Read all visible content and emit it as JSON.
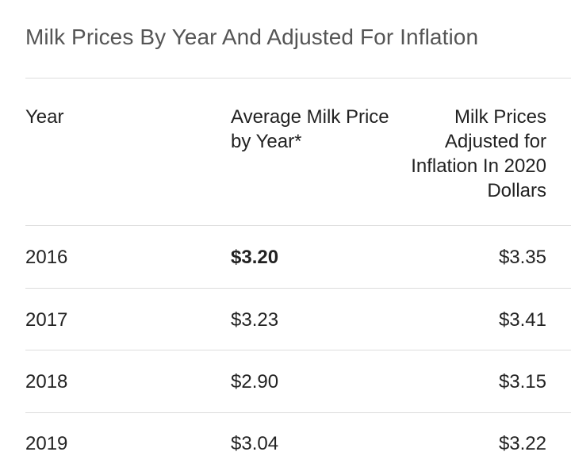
{
  "title": "Milk Prices By Year And Adjusted For Inflation",
  "table": {
    "headers": {
      "year": "Year",
      "avg": "Average Milk Price by Year*",
      "adjusted": "Milk Prices Adjusted for Inflation In 2020 Dollars"
    },
    "rows": [
      {
        "year": "2016",
        "avg": "$3.20",
        "adjusted": "$3.35"
      },
      {
        "year": "2017",
        "avg": "$3.23",
        "adjusted": "$3.41"
      },
      {
        "year": "2018",
        "avg": "$2.90",
        "adjusted": "$3.15"
      },
      {
        "year": "2019",
        "avg": "$3.04",
        "adjusted": "$3.22"
      }
    ]
  }
}
